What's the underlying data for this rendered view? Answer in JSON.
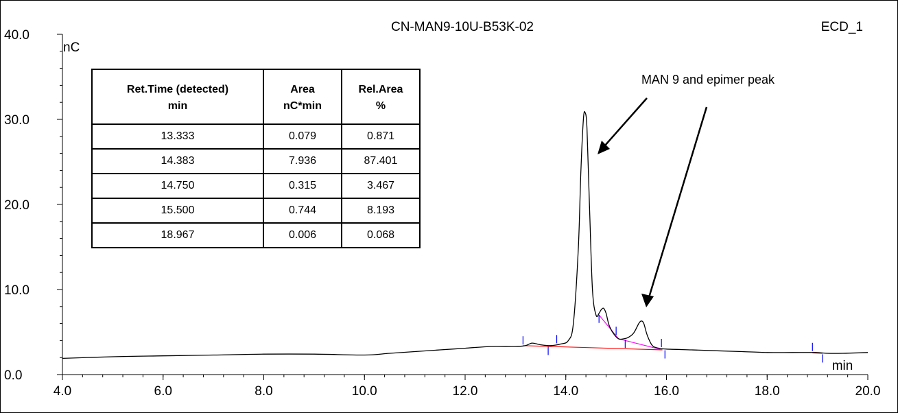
{
  "header": {
    "sample_name": "CN-MAN9-10U-B53K-02",
    "channel": "ECD_1"
  },
  "annotation": {
    "text": "MAN 9 and epimer peak"
  },
  "table": {
    "headers": [
      [
        "Ret.Time (detected)",
        "min"
      ],
      [
        "Area",
        "nC*min"
      ],
      [
        "Rel.Area",
        "%"
      ]
    ],
    "rows": [
      [
        "13.333",
        "0.079",
        "0.871"
      ],
      [
        "14.383",
        "7.936",
        "87.401"
      ],
      [
        "14.750",
        "0.315",
        "3.467"
      ],
      [
        "15.500",
        "0.744",
        "8.193"
      ],
      [
        "18.967",
        "0.006",
        "0.068"
      ]
    ]
  },
  "chart_data": {
    "type": "line",
    "title": "CN-MAN9-10U-B53K-02",
    "xlabel": "min",
    "ylabel": "nC",
    "xlim": [
      4.0,
      20.0
    ],
    "ylim": [
      0.0,
      40.0
    ],
    "x_ticks": [
      "4.0",
      "6.0",
      "8.0",
      "10.0",
      "12.0",
      "14.0",
      "16.0",
      "18.0",
      "20.0"
    ],
    "y_ticks": [
      "0.0",
      "10.0",
      "20.0",
      "30.0",
      "40.0"
    ],
    "colors": {
      "trace": "#000000",
      "baseline": "#ff0000",
      "peak_split": "#ff00ff",
      "markers": "#0000ff"
    },
    "series": [
      {
        "x": [
          4.0,
          5.0,
          6.0,
          7.0,
          8.0,
          9.0,
          10.0,
          10.5,
          11.0,
          11.5,
          12.0,
          12.5,
          13.0,
          13.2,
          13.33,
          13.5,
          13.7,
          13.9,
          14.05,
          14.15,
          14.25,
          14.3,
          14.35,
          14.383,
          14.42,
          14.47,
          14.53,
          14.6,
          14.66,
          14.7,
          14.75,
          14.8,
          14.86,
          14.95,
          15.05,
          15.15,
          15.25,
          15.35,
          15.45,
          15.5,
          15.55,
          15.62,
          15.72,
          15.85,
          16.0,
          16.5,
          17.0,
          17.5,
          18.0,
          18.5,
          18.967,
          19.2,
          19.5,
          20.0
        ],
        "y": [
          1.9,
          2.1,
          2.2,
          2.3,
          2.4,
          2.4,
          2.3,
          2.5,
          2.7,
          2.9,
          3.1,
          3.3,
          3.3,
          3.4,
          3.7,
          3.5,
          3.4,
          3.6,
          4.0,
          6.0,
          15.0,
          24.0,
          30.0,
          30.8,
          29.0,
          20.0,
          10.0,
          7.0,
          7.2,
          7.6,
          7.8,
          7.2,
          5.8,
          4.8,
          4.2,
          4.2,
          4.4,
          4.9,
          6.0,
          6.3,
          6.0,
          4.6,
          3.4,
          3.1,
          3.0,
          2.9,
          2.8,
          2.7,
          2.6,
          2.6,
          2.6,
          2.5,
          2.5,
          2.6
        ]
      }
    ],
    "baseline_segments": [
      {
        "x": [
          13.15,
          15.92
        ],
        "y": [
          3.4,
          2.9
        ]
      },
      {
        "x": [
          18.9,
          19.1
        ],
        "y": [
          2.55,
          2.5
        ]
      }
    ],
    "split_segments": [
      {
        "x": [
          14.66,
          15.05,
          15.92
        ],
        "y": [
          7.0,
          4.2,
          2.9
        ]
      }
    ],
    "event_markers": [
      13.15,
      13.65,
      13.82,
      14.66,
      15.0,
      15.18,
      15.9,
      15.97,
      18.9,
      19.1
    ]
  }
}
